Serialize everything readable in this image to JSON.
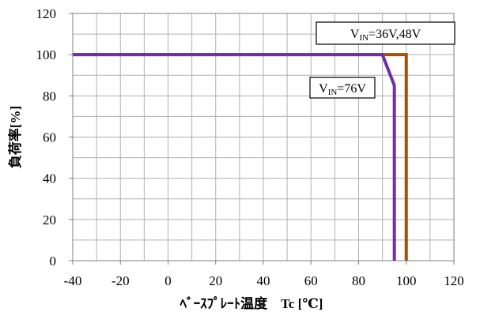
{
  "chart_data": {
    "type": "line",
    "xlabel": "ﾍﾞｰｽﾌﾟﾚｰﾄ温度　Tc [℃]",
    "ylabel": "負荷率[%]",
    "xlim": [
      -40,
      120
    ],
    "ylim": [
      0,
      120
    ],
    "xticks": [
      -40,
      -20,
      0,
      20,
      40,
      60,
      80,
      100,
      120
    ],
    "yticks": [
      0,
      20,
      40,
      60,
      80,
      100,
      120
    ],
    "grid": true,
    "series": [
      {
        "name": "VIN=36V,48V",
        "color": "#a0520c",
        "points": [
          [
            -40,
            100
          ],
          [
            100,
            100
          ],
          [
            100,
            0
          ]
        ]
      },
      {
        "name": "VIN=76V",
        "color": "#7030a0",
        "points": [
          [
            -40,
            100
          ],
          [
            90,
            100
          ],
          [
            95,
            85
          ],
          [
            95,
            0
          ]
        ]
      }
    ],
    "annotations": [
      {
        "prefix": "V",
        "sub": "IN",
        "rest": "=36V,48V",
        "series": 0
      },
      {
        "prefix": "V",
        "sub": "IN",
        "rest": "=76V",
        "series": 1
      }
    ]
  }
}
